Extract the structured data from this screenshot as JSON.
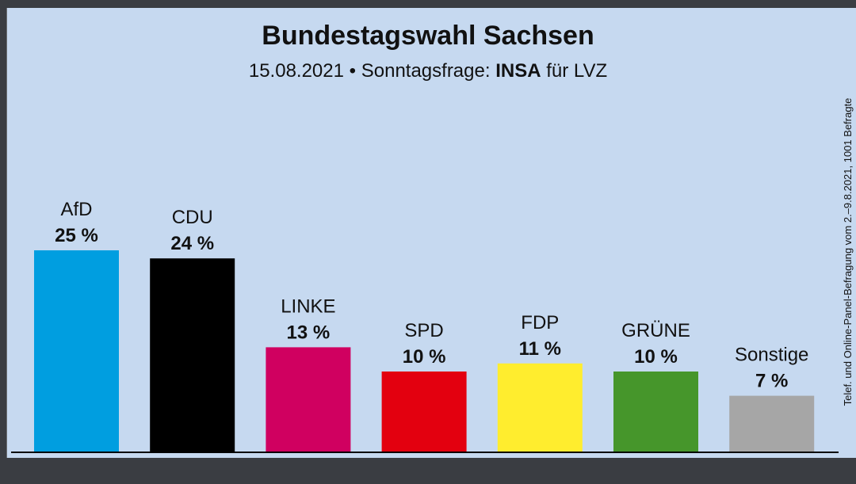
{
  "chart_data": {
    "type": "bar",
    "title": "Bundestagswahl Sachsen",
    "subtitle": {
      "date": "15.08.2021",
      "separator": "•",
      "label": "Sonntagsfrage:",
      "institute": "INSA",
      "client": "für LVZ"
    },
    "source_note": "Telef. und Online-Panel-Befragung vom 2.–9.8.2021, 1001 Befragte",
    "categories": [
      "AfD",
      "CDU",
      "LINKE",
      "SPD",
      "FDP",
      "GRÜNE",
      "Sonstige"
    ],
    "values": [
      25,
      24,
      13,
      10,
      11,
      10,
      7
    ],
    "value_labels": [
      "25 %",
      "24 %",
      "13 %",
      "10 %",
      "11 %",
      "10 %",
      "7 %"
    ],
    "colors": [
      "#009ee0",
      "#000000",
      "#d00060",
      "#e3000f",
      "#ffed2e",
      "#46962b",
      "#a6a6a6"
    ],
    "ylim": [
      0,
      25
    ],
    "xlabel": "",
    "ylabel": "",
    "grid": false
  },
  "theme": {
    "panel_bg": "#c6d9f0",
    "frame_bg": "#3a3d42",
    "axis_color": "#000000"
  }
}
